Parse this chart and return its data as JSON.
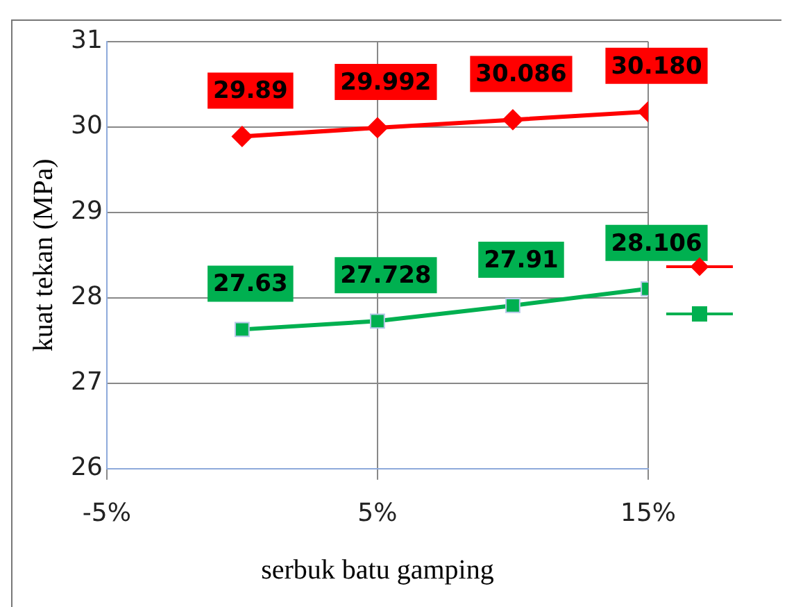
{
  "chart_data": {
    "type": "line",
    "xlabel": "serbuk batu gamping",
    "ylabel": "kuat tekan (MPa)",
    "x": [
      0,
      5,
      10,
      15
    ],
    "xlim": [
      -5,
      15
    ],
    "xticks": [
      {
        "value": -5,
        "label": "-5%"
      },
      {
        "value": 5,
        "label": "5%"
      },
      {
        "value": 15,
        "label": "15%"
      }
    ],
    "ylim": [
      26,
      31
    ],
    "yticks": [
      26,
      27,
      28,
      29,
      30,
      31
    ],
    "grid": true,
    "series": [
      {
        "color": "#ff0000",
        "marker": "diamond",
        "values": [
          29.89,
          29.992,
          30.086,
          30.18
        ],
        "value_labels": [
          "29.89",
          "29.992",
          "30.086",
          "30.180"
        ]
      },
      {
        "color": "#00b050",
        "marker": "square",
        "values": [
          27.63,
          27.728,
          27.91,
          28.106
        ],
        "value_labels": [
          "27.63",
          "27.728",
          "27.91",
          "28.106"
        ]
      }
    ]
  }
}
